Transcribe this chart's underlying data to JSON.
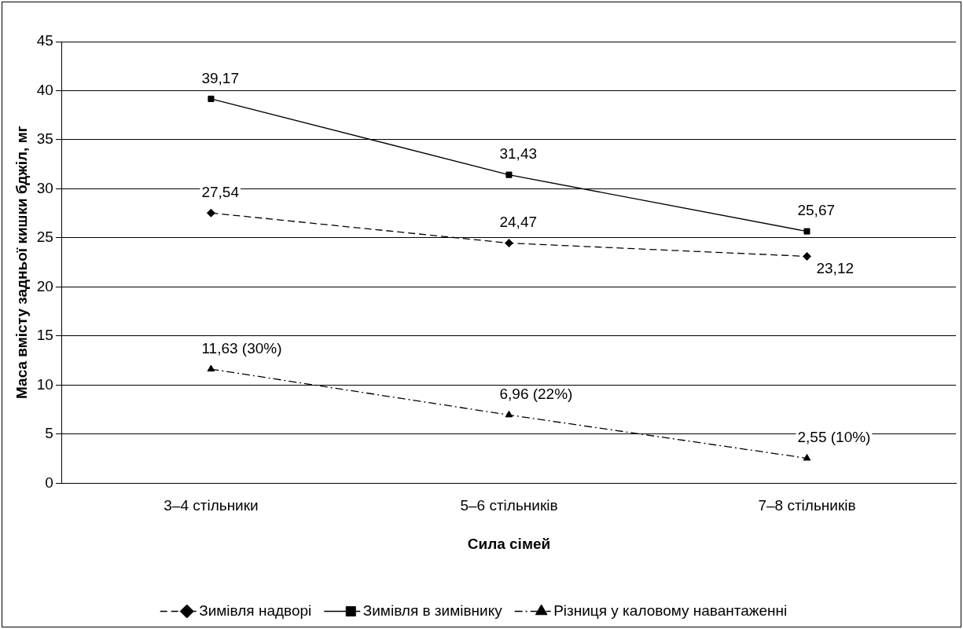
{
  "chart_data": {
    "type": "line",
    "xlabel": "Сила сімей",
    "ylabel": "Маса вмісту задньої кишки бджіл, мг",
    "categories": [
      "3–4 стільники",
      "5–6 стільників",
      "7–8 стільників"
    ],
    "series": [
      {
        "name": "Зимівля надворі",
        "color": "#000000",
        "values": [
          27.54,
          24.47,
          23.12
        ],
        "marker": "diamond",
        "line_style": "dashed",
        "value_labels": [
          "27,54",
          "24,47",
          "23,12"
        ]
      },
      {
        "name": "Зимівля в зимівнику",
        "color": "#000000",
        "values": [
          39.17,
          31.43,
          25.67
        ],
        "marker": "square",
        "line_style": "solid",
        "value_labels": [
          "39,17",
          "31,43",
          "25,67"
        ]
      },
      {
        "name": "Різниця у каловому навантаженні",
        "color": "#000000",
        "values": [
          11.63,
          6.96,
          2.55
        ],
        "marker": "triangle",
        "line_style": "dashdot",
        "value_labels": [
          "11,63 (30%)",
          "6,96 (22%)",
          "2,55 (10%)"
        ]
      }
    ],
    "ylim": [
      0,
      45
    ],
    "yticks": [
      0,
      5,
      10,
      15,
      20,
      25,
      30,
      35,
      40,
      45
    ],
    "grid": "y",
    "legend": "bottom"
  }
}
